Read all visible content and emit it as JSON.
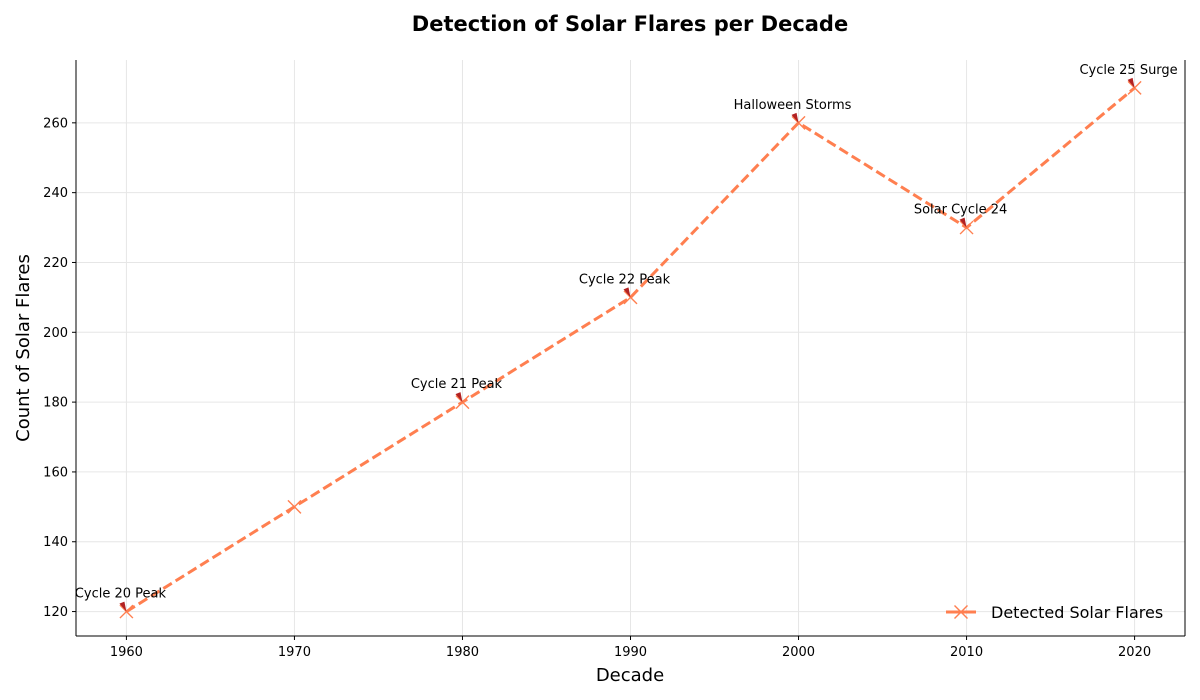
{
  "chart_data": {
    "type": "line",
    "title": "Detection of Solar Flares per Decade",
    "xlabel": "Decade",
    "ylabel": "Count of Solar Flares",
    "x": [
      1960,
      1970,
      1980,
      1990,
      2000,
      2010,
      2020
    ],
    "series": [
      {
        "name": "Detected Solar Flares",
        "values": [
          120,
          150,
          180,
          210,
          260,
          230,
          270
        ]
      }
    ],
    "xlim": [
      1957,
      2023
    ],
    "ylim": [
      113,
      278
    ],
    "xticks": [
      1960,
      1970,
      1980,
      1990,
      2000,
      2010,
      2020
    ],
    "yticks": [
      120,
      140,
      160,
      180,
      200,
      220,
      240,
      260
    ],
    "grid": true,
    "legend_position": "bottom-right",
    "line_style": "dashed",
    "marker": "x",
    "colors": {
      "line": "#ff7f50",
      "arrow": "#b22222"
    },
    "annotations": [
      {
        "text": "Cycle 20 Peak",
        "x": 1960,
        "y": 120
      },
      {
        "text": "Cycle 21 Peak",
        "x": 1980,
        "y": 180
      },
      {
        "text": "Cycle 22 Peak",
        "x": 1990,
        "y": 210
      },
      {
        "text": "Halloween Storms",
        "x": 2000,
        "y": 260
      },
      {
        "text": "Solar Cycle 24",
        "x": 2010,
        "y": 230
      },
      {
        "text": "Cycle 25 Surge",
        "x": 2020,
        "y": 270
      }
    ]
  }
}
